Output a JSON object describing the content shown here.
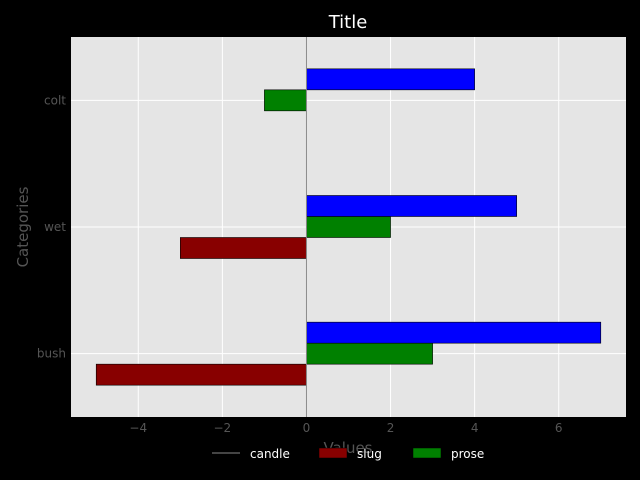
{
  "chart_data": {
    "type": "bar",
    "orientation": "horizontal",
    "title": "Title",
    "xlabel": "Values",
    "ylabel": "Categories",
    "categories": [
      "bush",
      "wet",
      "colt"
    ],
    "xlim": [
      -5.6,
      7.6
    ],
    "xticks": [
      -4,
      -2,
      0,
      2,
      4,
      6
    ],
    "xtick_labels": [
      "−4",
      "−2",
      "0",
      "2",
      "4",
      "6"
    ],
    "grid": true,
    "legend_placement": "bottom-center",
    "series": [
      {
        "name": "slug",
        "color": "#880000",
        "values": [
          -5,
          -3,
          0
        ]
      },
      {
        "name": "prose",
        "color": "#008000",
        "values": [
          3,
          2,
          -1
        ]
      },
      {
        "name": "",
        "color": "#0000ff",
        "values": [
          7,
          5,
          4
        ]
      }
    ],
    "reference_line": {
      "name": "candle",
      "x": 0,
      "color": "#888888"
    },
    "colors": {
      "background": "#000000",
      "plot_area": "#e5e5e5",
      "grid": "#ffffff"
    }
  }
}
